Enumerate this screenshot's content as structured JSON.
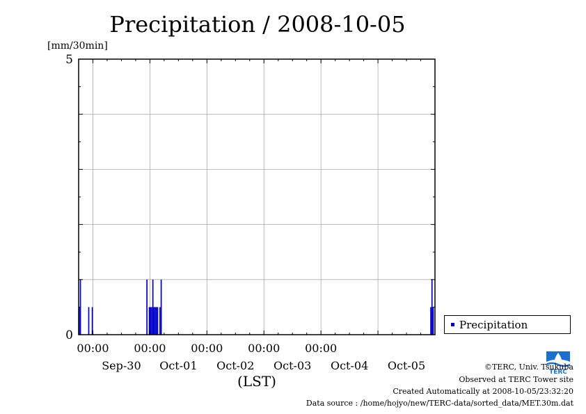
{
  "chart_data": {
    "type": "bar",
    "title": "Precipitation / 2008-10-05",
    "ylabel": "[mm/30min]",
    "xlabel": "(LST)",
    "ylim": [
      0,
      5
    ],
    "y_ticks": [
      "5",
      "0"
    ],
    "y_tick_values": [
      5,
      0
    ],
    "x_range": [
      "2008-09-29 18:00",
      "2008-10-06 00:00"
    ],
    "x_time_labels": [
      "00:00",
      "00:00",
      "00:00",
      "00:00",
      "00:00"
    ],
    "x_date_labels": [
      "Sep-30",
      "Oct-01",
      "Oct-02",
      "Oct-03",
      "Oct-04",
      "Oct-05"
    ],
    "gridlines": true,
    "legend_position": "right",
    "series": [
      {
        "name": "Precipitation",
        "color": "#0000cc",
        "bar_width_minutes": 30,
        "points": [
          {
            "t": "2008-09-29 18:00",
            "v": 0.5
          },
          {
            "t": "2008-09-29 18:30",
            "v": 1.0
          },
          {
            "t": "2008-09-29 22:00",
            "v": 0.5
          },
          {
            "t": "2008-09-29 23:30",
            "v": 0.5
          },
          {
            "t": "2008-09-30 22:30",
            "v": 1.0
          },
          {
            "t": "2008-09-30 23:30",
            "v": 0.5
          },
          {
            "t": "2008-10-01 00:00",
            "v": 0.5
          },
          {
            "t": "2008-10-01 00:30",
            "v": 0.5
          },
          {
            "t": "2008-10-01 01:00",
            "v": 1.0
          },
          {
            "t": "2008-10-01 01:30",
            "v": 0.5
          },
          {
            "t": "2008-10-01 02:00",
            "v": 0.5
          },
          {
            "t": "2008-10-01 02:30",
            "v": 0.5
          },
          {
            "t": "2008-10-01 03:00",
            "v": 0.5
          },
          {
            "t": "2008-10-01 04:00",
            "v": 0.5
          },
          {
            "t": "2008-10-01 04:30",
            "v": 1.0
          },
          {
            "t": "2008-10-05 22:00",
            "v": 0.5
          },
          {
            "t": "2008-10-05 22:30",
            "v": 1.0
          },
          {
            "t": "2008-10-05 23:00",
            "v": 0.5
          }
        ]
      }
    ]
  },
  "credits": {
    "copyright": "©TERC, Univ. Tsukuba",
    "observed": "Observed at TERC Tower site",
    "created": "Created Automatically at 2008-10-05/23:32:20",
    "source": "Data source : /home/hojyo/new/TERC-data/sorted_data/MET.30m.dat"
  },
  "logo": {
    "icon": "terc-logo-icon",
    "text": "TERC",
    "color": "#1a6fd0"
  }
}
